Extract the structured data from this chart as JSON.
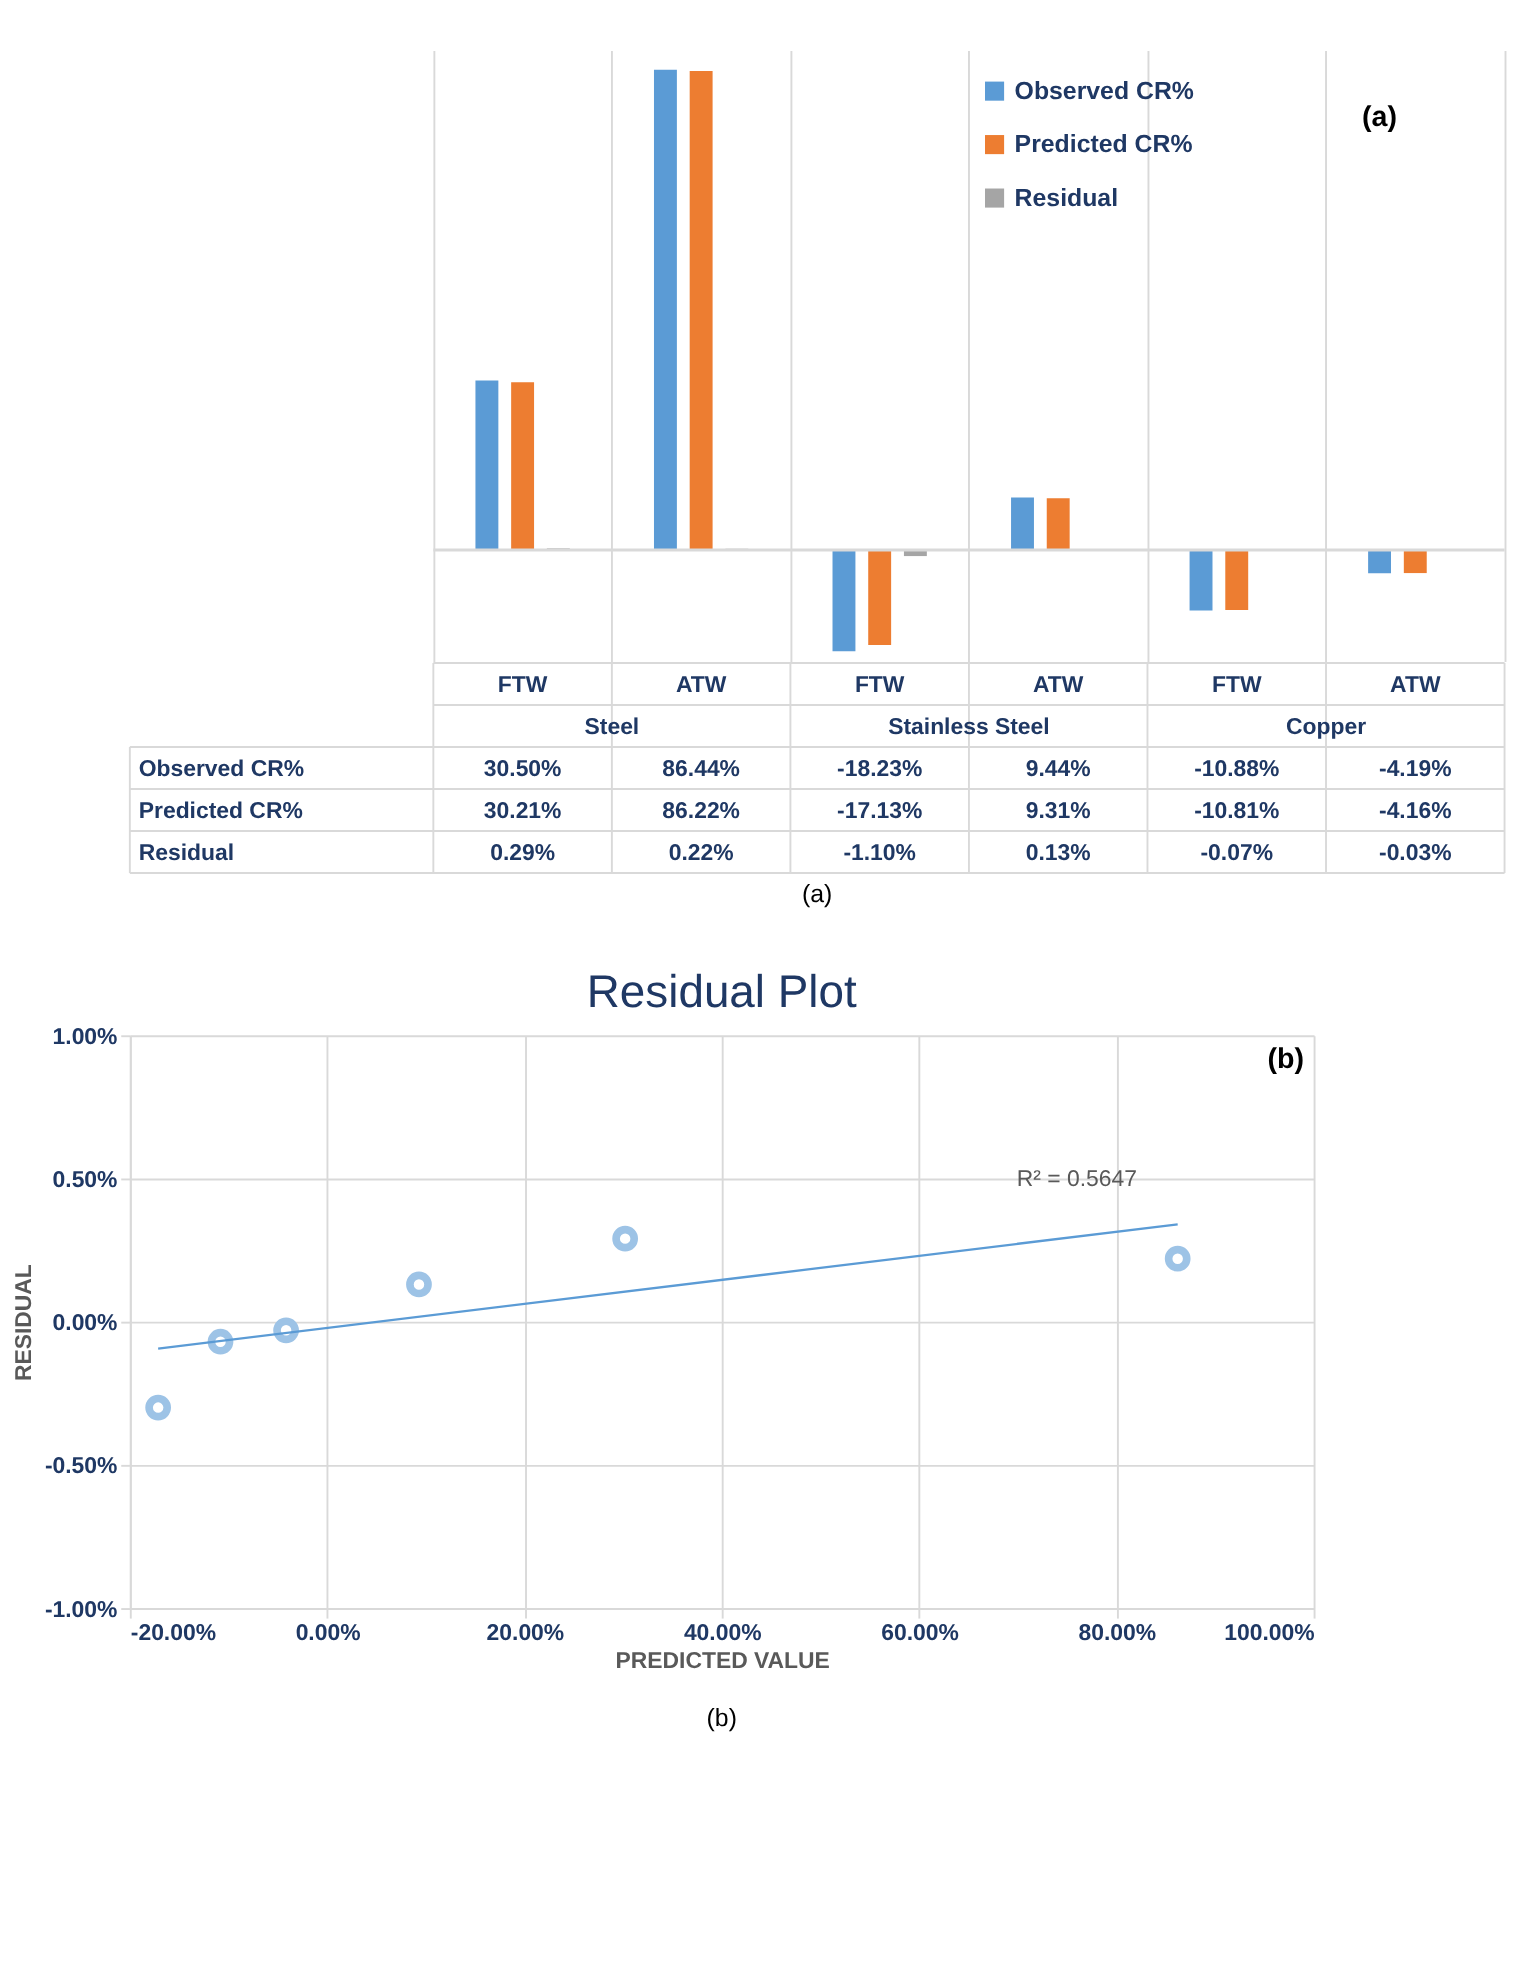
{
  "chart_data": [
    {
      "type": "bar",
      "categories": [
        "FTW",
        "ATW",
        "FTW",
        "ATW",
        "FTW",
        "ATW"
      ],
      "series": [
        {
          "name": "Observed CR%",
          "color": "#5b9bd5",
          "values": [
            30.5,
            86.44,
            -18.23,
            9.44,
            -10.88,
            -4.19
          ],
          "value_labels": [
            "30.50%",
            "86.44%",
            "-18.23%",
            "9.44%",
            "-10.88%",
            "-4.19%"
          ]
        },
        {
          "name": "Predicted CR%",
          "color": "#ed7d31",
          "values": [
            30.21,
            86.22,
            -17.13,
            9.31,
            -10.81,
            -4.16
          ],
          "value_labels": [
            "30.21%",
            "86.22%",
            "-17.13%",
            "9.31%",
            "-10.81%",
            "-4.16%"
          ]
        },
        {
          "name": "Residual",
          "color": "#a5a5a5",
          "values": [
            0.29,
            0.22,
            -1.1,
            0.13,
            -0.07,
            -0.03
          ],
          "value_labels": [
            "0.29%",
            "0.22%",
            "-1.10%",
            "0.13%",
            "-0.07%",
            "-0.03%"
          ]
        }
      ],
      "annotations": [
        "Steel",
        "Stainless Steel",
        "Copper",
        "(a)",
        "(a)"
      ],
      "legend": "top right",
      "grid": "x",
      "tick_labels": false
    },
    {
      "type": "scatter",
      "title": "Residual Plot",
      "xlabel": "PREDICTED VALUE",
      "ylabel": "RESIDUAL",
      "series": [
        {
          "type": "scatter",
          "marker": "circle",
          "color": "#9dc3e6",
          "x": [
            -17.13,
            -10.81,
            -4.16,
            9.31,
            30.21,
            86.22
          ],
          "values": [
            -0.3,
            -0.07,
            -0.03,
            0.13,
            0.29,
            0.22
          ]
        },
        {
          "type": "line",
          "color": "#5b9bd5",
          "x": [
            -17.13,
            86.22
          ],
          "values": [
            -0.094,
            0.34
          ]
        }
      ],
      "xlim": [
        -20,
        100
      ],
      "xticks": [
        {
          "value": -20,
          "label": "-20.00%"
        },
        {
          "value": 0,
          "label": "0.00%"
        },
        {
          "value": 20,
          "label": "20.00%"
        },
        {
          "value": 40,
          "label": "40.00%"
        },
        {
          "value": 60,
          "label": "60.00%"
        },
        {
          "value": 80,
          "label": "80.00%"
        },
        {
          "value": 100,
          "label": "100.00%"
        }
      ],
      "ylim": [
        -1,
        1
      ],
      "yticks": [
        {
          "value": -1,
          "label": "-1.00%"
        },
        {
          "value": -0.5,
          "label": "-0.50%"
        },
        {
          "value": 0,
          "label": "0.00%"
        },
        {
          "value": 0.5,
          "label": "0.50%"
        },
        {
          "value": 1,
          "label": "1.00%"
        }
      ],
      "annotations": [
        "R² = 0.5647",
        "(b)",
        "(b)"
      ],
      "grid": true
    }
  ]
}
